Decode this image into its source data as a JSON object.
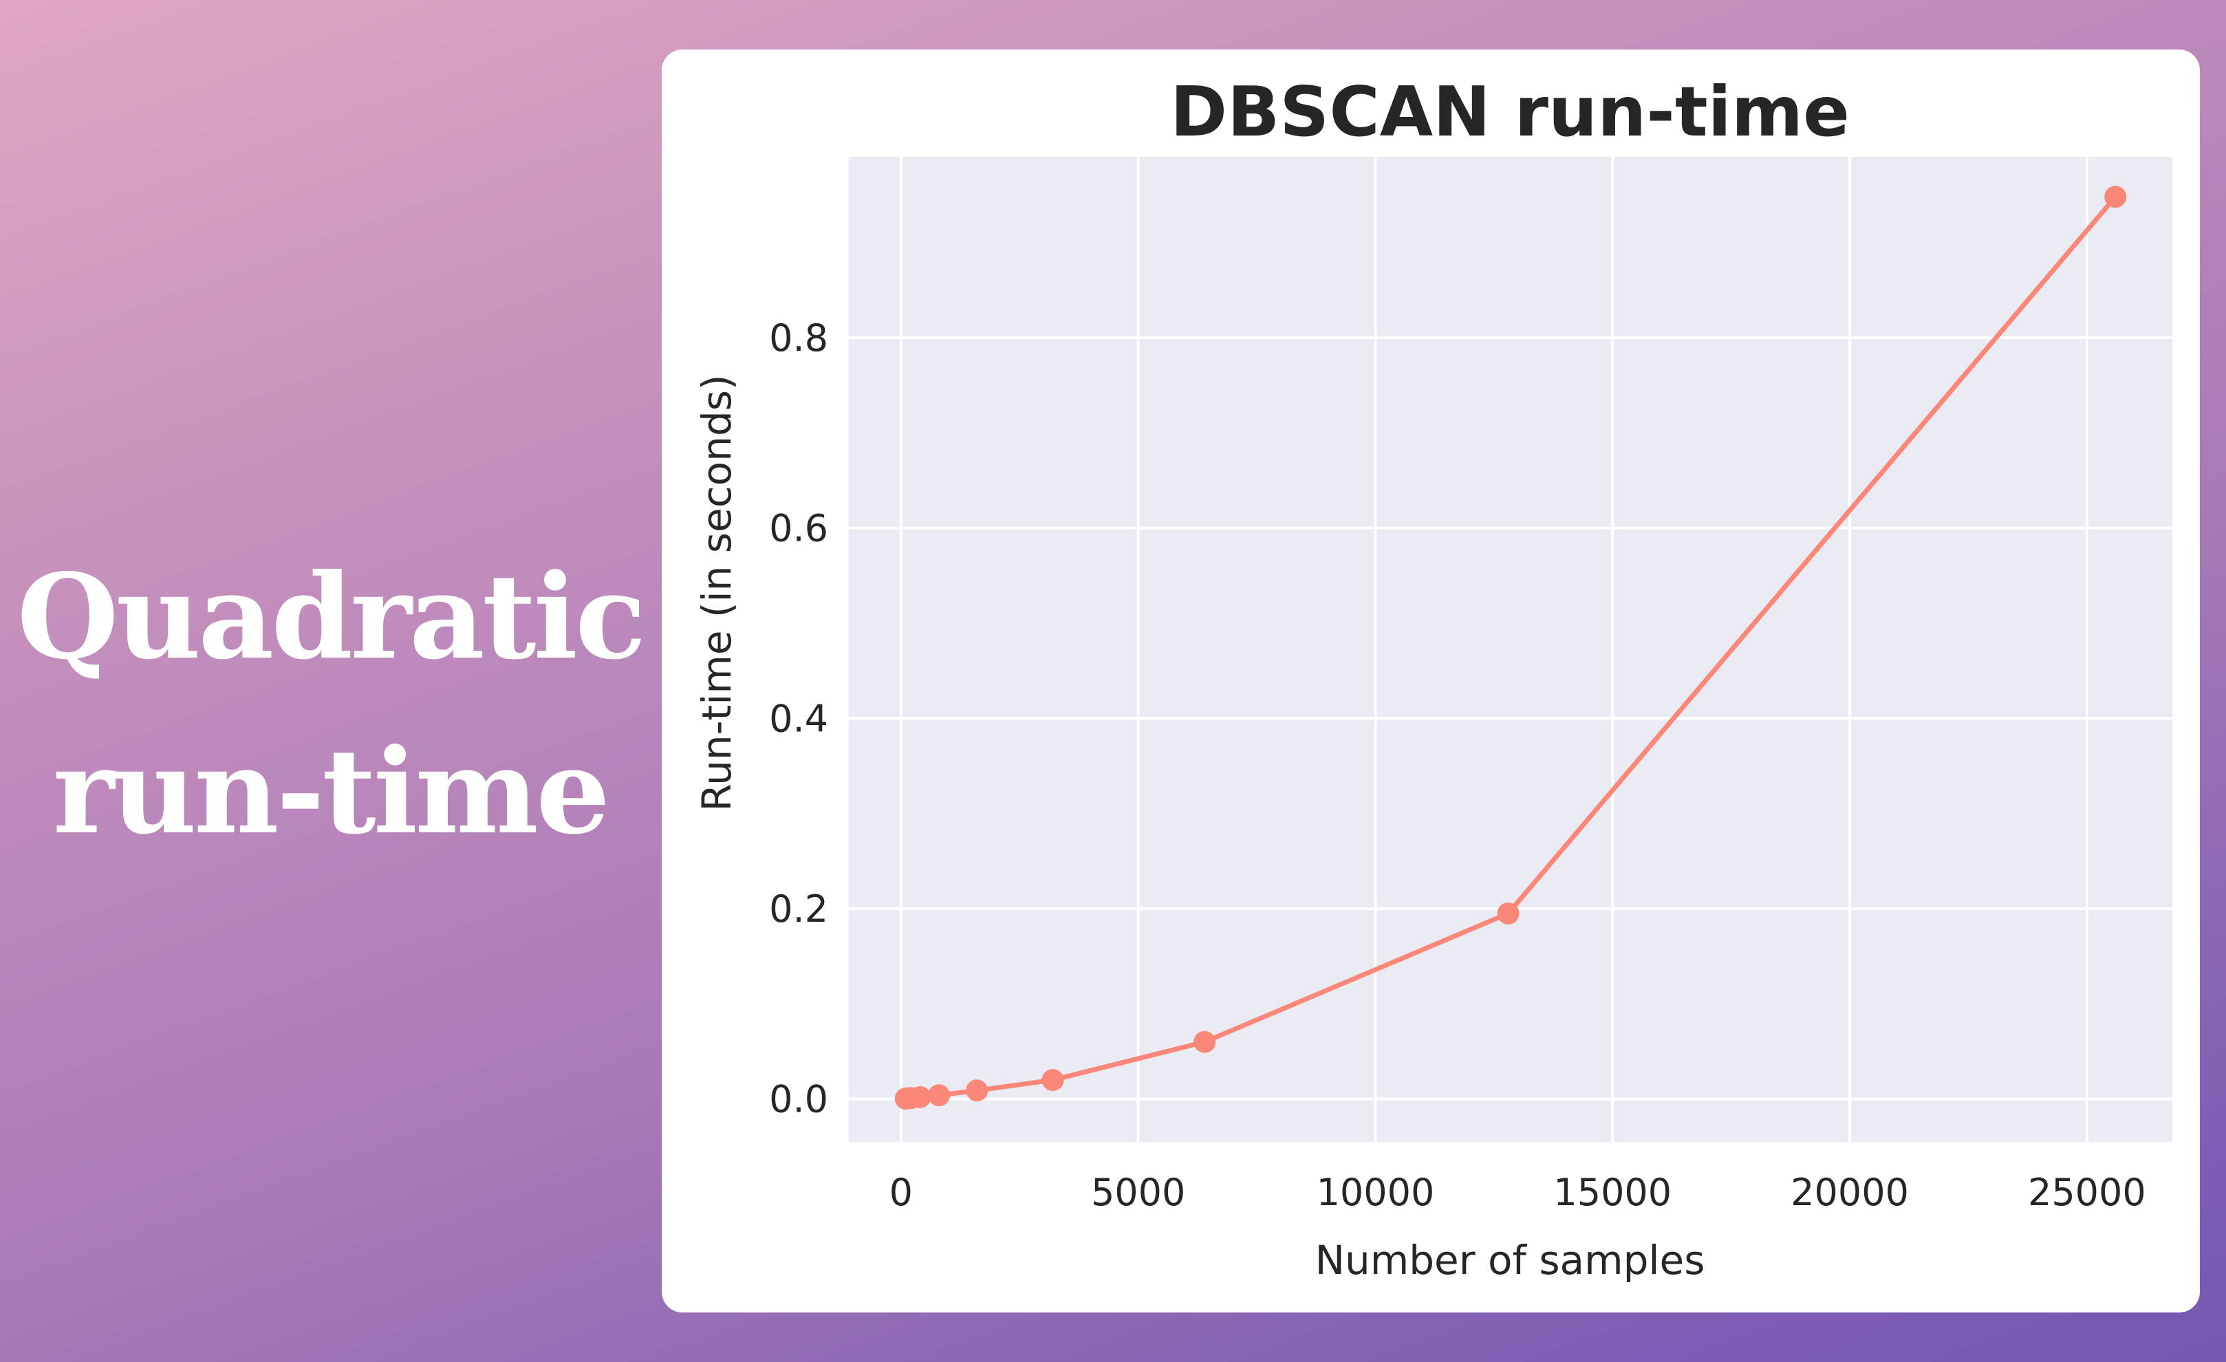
{
  "headline": {
    "line1": "Quadratic",
    "line2": "run-time"
  },
  "colors": {
    "background_start": "#e0a6c2",
    "background_end": "#7558b1",
    "card": "#ffffff",
    "plot_bg": "#eaeaf2",
    "grid": "#ffffff",
    "series": "#fa8778",
    "text": "#262626"
  },
  "chart_data": {
    "type": "line",
    "title": "DBSCAN run-time",
    "xlabel": "Number of samples",
    "ylabel": "Run-time (in seconds)",
    "xlim": [
      -1100,
      26800
    ],
    "ylim": [
      -0.045,
      0.99
    ],
    "xticks": [
      0,
      5000,
      10000,
      15000,
      20000,
      25000
    ],
    "xtick_labels": [
      "0",
      "5000",
      "10000",
      "15000",
      "20000",
      "25000"
    ],
    "yticks": [
      0.0,
      0.2,
      0.4,
      0.6,
      0.8
    ],
    "ytick_labels": [
      "0.0",
      "0.2",
      "0.4",
      "0.6",
      "0.8"
    ],
    "grid": true,
    "legend": false,
    "series": [
      {
        "name": "DBSCAN",
        "x": [
          100,
          200,
          400,
          800,
          1600,
          3200,
          6400,
          12800,
          25600
        ],
        "values": [
          0.0005,
          0.001,
          0.002,
          0.004,
          0.009,
          0.02,
          0.06,
          0.195,
          0.948
        ]
      }
    ]
  }
}
